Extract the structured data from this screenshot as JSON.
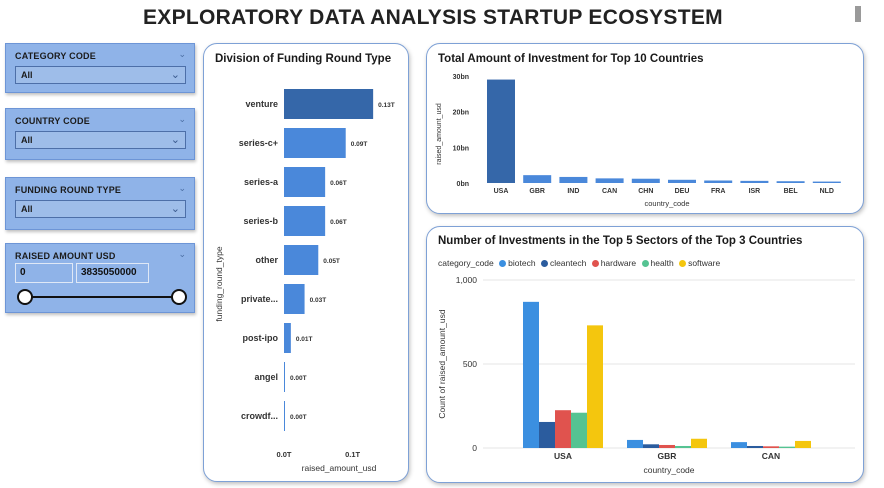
{
  "header": {
    "title": "EXPLORATORY DATA ANALYSIS  STARTUP ECOSYSTEM"
  },
  "slicers": {
    "category": {
      "title": "CATEGORY CODE",
      "value": "All"
    },
    "country": {
      "title": "COUNTRY CODE",
      "value": "All"
    },
    "funding": {
      "title": "FUNDING ROUND TYPE",
      "value": "All"
    },
    "raised": {
      "title": "RAISED AMOUNT USD",
      "min": "0",
      "max": "3835050000"
    }
  },
  "colors": {
    "dark_blue": "#3567a9",
    "blue": "#4a88da",
    "slicer_bg": "#8fb3e8",
    "biotech": "#3b8fe0",
    "cleantech": "#2b5c9e",
    "hardware": "#e0534e",
    "health": "#55c392",
    "software": "#f4c60e"
  },
  "chart_data": [
    {
      "type": "bar",
      "orientation": "horizontal",
      "title": "Division of Funding Round Type",
      "categories": [
        "venture",
        "series-c+",
        "series-a",
        "series-b",
        "other",
        "private...",
        "post-ipo",
        "angel",
        "crowdf..."
      ],
      "values": [
        0.13,
        0.09,
        0.06,
        0.06,
        0.05,
        0.03,
        0.01,
        0.0,
        0.0
      ],
      "labels": [
        "0.13T",
        "0.09T",
        "0.06T",
        "0.06T",
        "0.05T",
        "0.03T",
        "0.01T",
        "0.00T",
        "0.00T"
      ],
      "xlabel": "raised_amount_usd",
      "ylabel": "funding_round_type",
      "xticks": [
        "0.0T",
        "0.1T"
      ],
      "xlim": [
        0,
        0.14
      ]
    },
    {
      "type": "bar",
      "title": "Total Amount of Investment for Top 10 Countries",
      "categories": [
        "USA",
        "GBR",
        "IND",
        "CAN",
        "CHN",
        "DEU",
        "FRA",
        "ISR",
        "BEL",
        "NLD"
      ],
      "values": [
        29,
        2.2,
        1.7,
        1.3,
        1.2,
        0.9,
        0.7,
        0.6,
        0.5,
        0.4
      ],
      "xlabel": "country_code",
      "ylabel": "raised_amount_usd",
      "yticks": [
        "0bn",
        "10bn",
        "20bn",
        "30bn"
      ],
      "ylim": [
        0,
        30
      ]
    },
    {
      "type": "bar",
      "title": "Number of Investments in the Top 5 Sectors of the Top 3 Countries",
      "legend_title": "category_code",
      "categories": [
        "USA",
        "GBR",
        "CAN"
      ],
      "series": [
        {
          "name": "biotech",
          "values": [
            870,
            48,
            35
          ]
        },
        {
          "name": "cleantech",
          "values": [
            155,
            22,
            12
          ]
        },
        {
          "name": "hardware",
          "values": [
            225,
            18,
            10
          ]
        },
        {
          "name": "health",
          "values": [
            210,
            12,
            8
          ]
        },
        {
          "name": "software",
          "values": [
            730,
            55,
            42
          ]
        }
      ],
      "xlabel": "country_code",
      "ylabel": "Count of raised_amount_usd",
      "yticks": [
        "0",
        "500",
        "1,000"
      ],
      "ylim": [
        0,
        1000
      ]
    }
  ]
}
